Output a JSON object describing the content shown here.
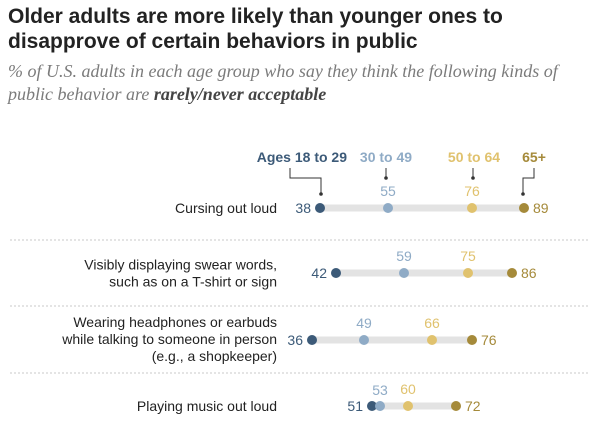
{
  "title": "Older adults are more likely than younger ones to disapprove of certain behaviors in public",
  "subtitle_prefix": "% of U.S. adults in each age group who say they think the following kinds of public behavior are ",
  "subtitle_emphasis": "rarely/never acceptable",
  "colors": {
    "ages_18_29": "#3c5a78",
    "ages_30_49": "#8fabc6",
    "ages_50_64": "#e0c26e",
    "ages_65_plus": "#a58a3a",
    "track": "#e3e3e3",
    "divider": "#c8c8c8"
  },
  "chart_data": {
    "type": "dot",
    "series": [
      {
        "name": "Ages 18 to 29",
        "values": [
          38,
          42,
          36,
          51
        ]
      },
      {
        "name": "30 to 49",
        "values": [
          55,
          59,
          49,
          53
        ]
      },
      {
        "name": "50 to 64",
        "values": [
          76,
          75,
          66,
          60
        ]
      },
      {
        "name": "65+",
        "values": [
          89,
          86,
          76,
          72
        ]
      }
    ],
    "categories": [
      [
        "Cursing out loud"
      ],
      [
        "Visibly displaying swear words,",
        "such as on a T-shirt or sign"
      ],
      [
        "Wearing headphones or earbuds",
        "while talking to someone in person",
        "(e.g., a shopkeeper)"
      ],
      [
        "Playing music out loud"
      ]
    ]
  }
}
